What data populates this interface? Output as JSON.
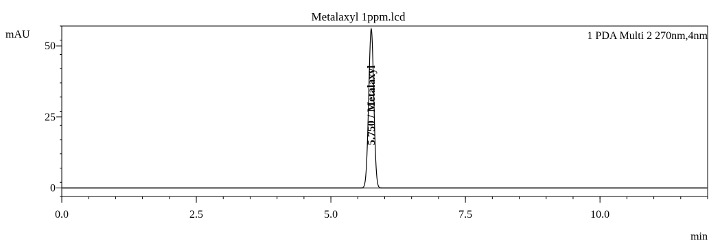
{
  "chart_data": {
    "type": "line",
    "title": "Metalaxyl 1ppm.lcd",
    "ylabel": "mAU",
    "xlabel": "min",
    "channel_label": "1 PDA Multi 2 270nm,4nm",
    "xlim": [
      0.0,
      12.0
    ],
    "ylim": [
      -3,
      57
    ],
    "x_major_ticks": [
      0.0,
      2.5,
      5.0,
      7.5,
      10.0
    ],
    "x_tick_labels": [
      "0.0",
      "2.5",
      "5.0",
      "7.5",
      "10.0"
    ],
    "y_major_ticks": [
      0,
      25,
      50
    ],
    "y_tick_labels": [
      "0",
      "25",
      "50"
    ],
    "x_minor_step": 0.5,
    "y_minor_step": 5,
    "peaks": [
      {
        "label": "5.750 / Metalaxyl",
        "retention_time": 5.75,
        "height": 56,
        "width_sigma": 0.045
      }
    ],
    "baseline_color": "#808080",
    "trace_color": "#000000"
  }
}
